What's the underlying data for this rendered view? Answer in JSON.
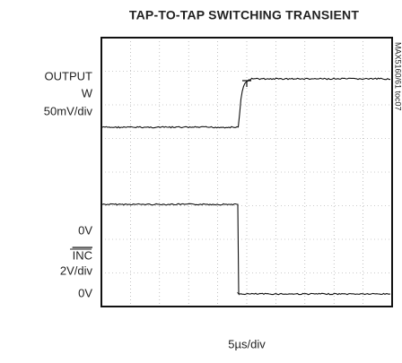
{
  "figure": {
    "title": "TAP-TO-TAP SWITCHING TRANSIENT",
    "labels": {
      "output": "OUTPUT",
      "w": "W",
      "output_scale": "50mV/div",
      "output_zero": "0V",
      "inc": "INC",
      "inc_scale": "2V/div",
      "inc_zero": "0V"
    },
    "x_label": "5µs/div",
    "figure_id": "MAX5160/61 toc07"
  }
}
